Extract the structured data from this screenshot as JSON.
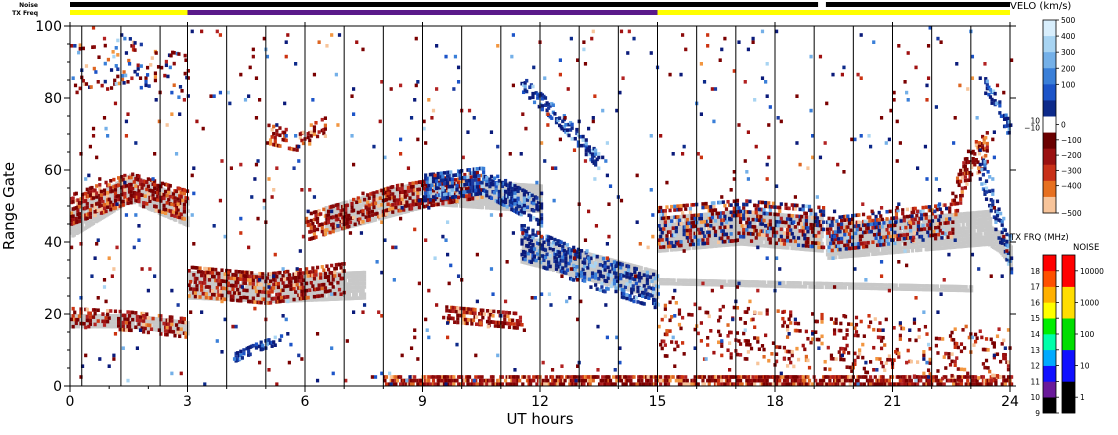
{
  "chart_data": {
    "type": "heatmap",
    "xlabel": "UT hours",
    "ylabel": "Range Gate",
    "xlim": [
      0,
      24
    ],
    "ylim": [
      0,
      100
    ],
    "x_ticks": [
      0,
      3,
      6,
      9,
      12,
      15,
      18,
      21,
      24
    ],
    "y_ticks": [
      0,
      20,
      40,
      60,
      80,
      100
    ],
    "top_strips": [
      {
        "label": "Noise",
        "segments": [
          {
            "start": 0,
            "end": 19.1,
            "color": "#000000"
          },
          {
            "start": 19.3,
            "end": 24,
            "color": "#000000"
          }
        ]
      },
      {
        "label": "TX Freq",
        "segments": [
          {
            "start": 0,
            "end": 3,
            "color": "#ffff00"
          },
          {
            "start": 3,
            "end": 15,
            "color": "#5a1a8a"
          },
          {
            "start": 15,
            "end": 24,
            "color": "#ffff00"
          }
        ]
      }
    ],
    "scan_boundaries_ut": [
      0.3,
      1.3,
      2.3,
      3,
      4,
      5,
      6,
      7,
      8,
      9,
      10,
      11,
      12,
      13,
      14,
      15,
      16,
      17,
      18,
      19,
      20,
      21,
      22,
      23,
      24
    ],
    "regions": [
      {
        "kind": "band",
        "t0": 0,
        "t1": 3,
        "center": [
          49,
          55,
          50
        ],
        "width": 9,
        "density": 0.45,
        "palette": "red"
      },
      {
        "kind": "band",
        "t0": 0,
        "t1": 3,
        "center": [
          19,
          18,
          16
        ],
        "width": 6,
        "density": 0.3,
        "palette": "red"
      },
      {
        "kind": "band",
        "t0": 0.1,
        "t1": 3,
        "center": [
          88,
          90,
          86
        ],
        "width": 14,
        "density": 0.08,
        "palette": "mixed"
      },
      {
        "kind": "band",
        "t0": 3,
        "t1": 7,
        "center": [
          29,
          27,
          30
        ],
        "width": 9,
        "density": 0.4,
        "palette": "red"
      },
      {
        "kind": "band",
        "t0": 4.2,
        "t1": 5.4,
        "center": [
          8,
          11,
          13
        ],
        "width": 3,
        "density": 0.5,
        "palette": "blue"
      },
      {
        "kind": "band",
        "t0": 5,
        "t1": 6.5,
        "center": [
          70,
          68,
          72
        ],
        "width": 6,
        "density": 0.25,
        "palette": "red"
      },
      {
        "kind": "band",
        "t0": 6,
        "t1": 10.5,
        "center": [
          44,
          52,
          56
        ],
        "width": 8,
        "density": 0.4,
        "palette": "red"
      },
      {
        "kind": "band",
        "t0": 9,
        "t1": 12,
        "center": [
          55,
          57,
          48
        ],
        "width": 8,
        "density": 0.45,
        "palette": "blue"
      },
      {
        "kind": "band",
        "t0": 11.5,
        "t1": 15,
        "center": [
          40,
          32,
          26
        ],
        "width": 10,
        "density": 0.4,
        "palette": "blue"
      },
      {
        "kind": "band",
        "t0": 11.5,
        "t1": 13.5,
        "center": [
          84,
          74,
          62
        ],
        "width": 5,
        "density": 0.4,
        "palette": "blue"
      },
      {
        "kind": "band",
        "t0": 9.5,
        "t1": 11.5,
        "center": [
          20,
          19,
          18
        ],
        "width": 5,
        "density": 0.4,
        "palette": "red"
      },
      {
        "kind": "band",
        "t0": 15,
        "t1": 19.2,
        "center": [
          44,
          46,
          44
        ],
        "width": 12,
        "density": 0.35,
        "palette": "mixed"
      },
      {
        "kind": "band",
        "t0": 19.3,
        "t1": 22.5,
        "center": [
          42,
          44,
          46
        ],
        "width": 10,
        "density": 0.35,
        "palette": "mixed"
      },
      {
        "kind": "band",
        "t0": 22.5,
        "t1": 23.4,
        "center": [
          50,
          62,
          66
        ],
        "width": 10,
        "density": 0.4,
        "palette": "red"
      },
      {
        "kind": "band",
        "t0": 23.2,
        "t1": 24,
        "center": [
          62,
          48,
          36
        ],
        "width": 10,
        "density": 0.4,
        "palette": "blue"
      },
      {
        "kind": "band",
        "t0": 23.3,
        "t1": 24,
        "center": [
          84,
          78,
          70
        ],
        "width": 5,
        "density": 0.4,
        "palette": "blue"
      },
      {
        "kind": "band",
        "t0": 8,
        "t1": 24,
        "center": [
          1,
          1,
          1
        ],
        "width": 4,
        "density": 0.6,
        "palette": "red"
      },
      {
        "kind": "band",
        "t0": 15,
        "t1": 24,
        "center": [
          16,
          12,
          8
        ],
        "width": 16,
        "density": 0.1,
        "palette": "red"
      },
      {
        "kind": "gray",
        "t0": 0,
        "t1": 3,
        "center": [
          45,
          55,
          48
        ],
        "width": 8
      },
      {
        "kind": "gray",
        "t0": 0,
        "t1": 3,
        "center": [
          18,
          18,
          16
        ],
        "width": 4
      },
      {
        "kind": "gray",
        "t0": 3,
        "t1": 7.5,
        "center": [
          28,
          27,
          28
        ],
        "width": 8
      },
      {
        "kind": "gray",
        "t0": 6.5,
        "t1": 12,
        "center": [
          46,
          54,
          52
        ],
        "width": 8
      },
      {
        "kind": "gray",
        "t0": 11.5,
        "t1": 15,
        "center": [
          38,
          33,
          28
        ],
        "width": 8
      },
      {
        "kind": "gray",
        "t0": 15,
        "t1": 19.2,
        "center": [
          42,
          44,
          42
        ],
        "width": 10
      },
      {
        "kind": "gray",
        "t0": 19.3,
        "t1": 23.5,
        "center": [
          40,
          42,
          44
        ],
        "width": 10
      },
      {
        "kind": "gray",
        "t0": 23.4,
        "t1": 24,
        "center": [
          42,
          40,
          36
        ],
        "width": 6
      },
      {
        "kind": "gray",
        "t0": 15,
        "t1": 23,
        "center": [
          29,
          28,
          27
        ],
        "width": 2
      },
      {
        "kind": "noise",
        "t0": 0,
        "t1": 24,
        "density": 0.012
      }
    ]
  },
  "velo_scale": {
    "title": "VELO (km/s)",
    "ticks": [
      "500",
      "400",
      "300",
      "200",
      "100",
      "0",
      "−100",
      "−200",
      "−300",
      "−400",
      "−500"
    ],
    "near_zero_labels": [
      "10",
      "−10"
    ]
  },
  "tx_freq_scale": {
    "title": "TX FRQ (MHz)",
    "ticks": [
      "9",
      "10",
      "11",
      "12",
      "13",
      "14",
      "15",
      "16",
      "17",
      "18"
    ],
    "colors": [
      "#000000",
      "#6a1a9a",
      "#1010ff",
      "#00aaff",
      "#00ffaa",
      "#00ee00",
      "#ffff00",
      "#ffb000",
      "#ff5000",
      "#ff0000"
    ]
  },
  "noise_scale": {
    "title": "NOISE",
    "ticks": [
      "1",
      "10",
      "100",
      "1000",
      "10000"
    ],
    "colors": [
      "#000000",
      "#1010ff",
      "#00dd00",
      "#ffdd00",
      "#ff0000"
    ]
  }
}
